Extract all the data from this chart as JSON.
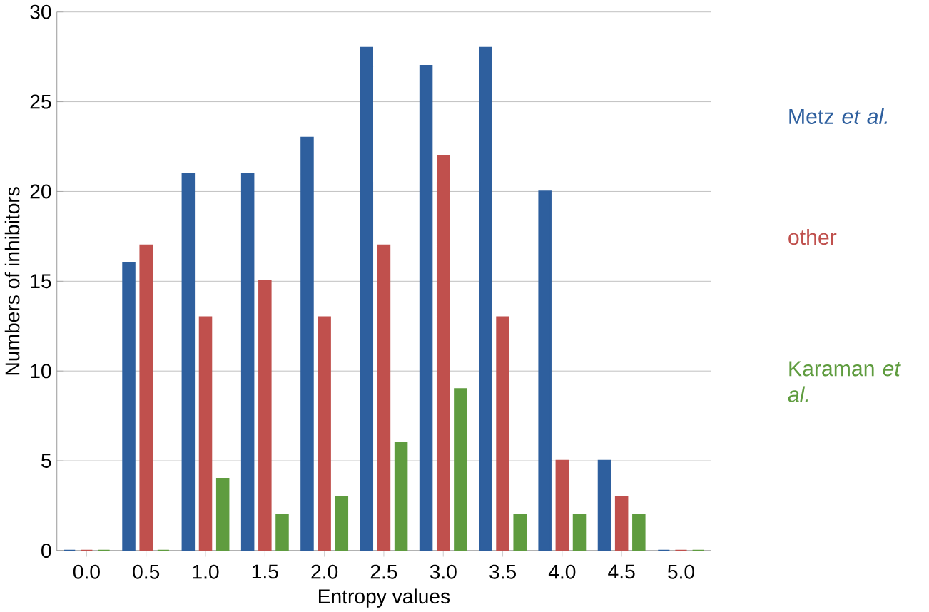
{
  "chart_data": {
    "type": "bar",
    "xlabel": "Entropy values",
    "ylabel": "Numbers of inhibitors",
    "categories": [
      "0.0",
      "0.5",
      "1.0",
      "1.5",
      "2.0",
      "2.5",
      "3.0",
      "3.5",
      "4.0",
      "4.5",
      "5.0"
    ],
    "series": [
      {
        "name": "Metz *et al.*",
        "color": "#2e5f9e",
        "values": [
          0,
          16,
          21,
          21,
          23,
          28,
          27,
          28,
          20,
          5,
          0
        ]
      },
      {
        "name": "other",
        "color": "#c0504d",
        "values": [
          0,
          17,
          13,
          15,
          13,
          17,
          22,
          13,
          5,
          3,
          0
        ]
      },
      {
        "name": "Karaman *et al.*",
        "color": "#5f9c3f",
        "values": [
          0,
          0,
          4,
          2,
          3,
          6,
          9,
          2,
          2,
          2,
          0
        ]
      }
    ],
    "ylim": [
      0,
      30
    ],
    "yticks": [
      0,
      5,
      10,
      15,
      20,
      25,
      30
    ],
    "grid": "y"
  }
}
